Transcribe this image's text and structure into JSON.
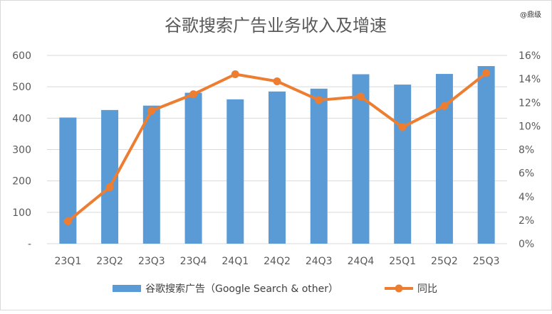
{
  "chart_data": {
    "type": "bar",
    "title": "谷歌搜索广告业务收入及增速",
    "categories": [
      "23Q1",
      "23Q2",
      "23Q3",
      "23Q4",
      "24Q1",
      "24Q2",
      "24Q3",
      "24Q4",
      "25Q1",
      "25Q2",
      "25Q3"
    ],
    "series": [
      {
        "name": "谷歌搜索广告（Google Search & other）",
        "type": "bar",
        "axis": "left",
        "color": "#5b9bd5",
        "values": [
          402,
          426,
          440,
          481,
          460,
          485,
          494,
          540,
          507,
          541,
          566
        ]
      },
      {
        "name": "同比",
        "type": "line",
        "axis": "right",
        "color": "#ed7d31",
        "values": [
          1.9,
          4.8,
          11.3,
          12.7,
          14.4,
          13.8,
          12.2,
          12.5,
          9.9,
          11.7,
          14.5
        ]
      }
    ],
    "left_axis": {
      "min": 0,
      "max": 600,
      "step": 100,
      "zero_label": "-"
    },
    "right_axis": {
      "min": 0,
      "max": 16,
      "step": 2,
      "unit": "%"
    },
    "grid": true,
    "legend_position": "bottom",
    "watermark": "@鼎级"
  }
}
